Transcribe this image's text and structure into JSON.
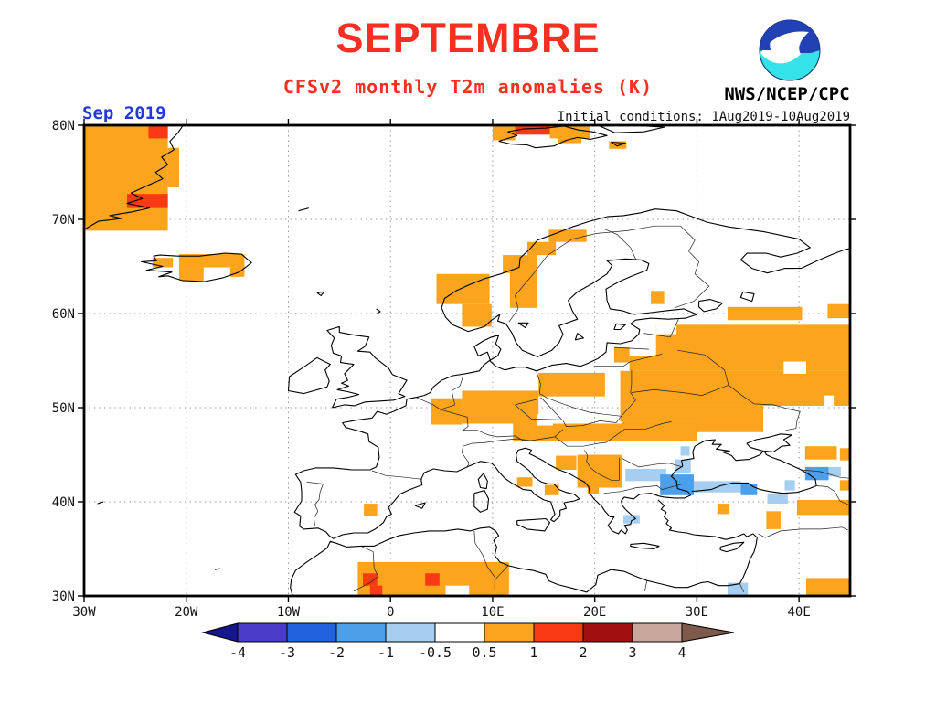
{
  "header": {
    "title": "SEPTEMBRE",
    "subtitle": "CFSv2 monthly T2m anomalies (K)",
    "agency": "NWS/NCEP/CPC",
    "noaa_label": "NOAA",
    "date_label": "Sep 2019",
    "init_conditions": "Initial conditions: 1Aug2019-10Aug2019"
  },
  "colors": {
    "title_red": "#f53022",
    "date_blue": "#2038dc",
    "map_frame": "#000000",
    "grid": "#999999"
  },
  "chart_data": {
    "type": "heatmap",
    "title": "SEPTEMBRE",
    "subtitle": "CFSv2 monthly T2m anomalies (K)",
    "projection": "equirectangular",
    "region": "Europe / North Atlantic",
    "lon_range": [
      -30,
      45
    ],
    "lat_range": [
      30,
      80
    ],
    "grid": true,
    "lat_ticks": [
      {
        "label": "80N",
        "value": 80
      },
      {
        "label": "70N",
        "value": 70
      },
      {
        "label": "60N",
        "value": 60
      },
      {
        "label": "50N",
        "value": 50
      },
      {
        "label": "40N",
        "value": 40
      },
      {
        "label": "30N",
        "value": 30
      }
    ],
    "lon_ticks": [
      {
        "label": "30W",
        "value": -30
      },
      {
        "label": "20W",
        "value": -20
      },
      {
        "label": "10W",
        "value": -10
      },
      {
        "label": "0",
        "value": 0
      },
      {
        "label": "10E",
        "value": 10
      },
      {
        "label": "20E",
        "value": 20
      },
      {
        "label": "30E",
        "value": 30
      },
      {
        "label": "40E",
        "value": 40
      }
    ],
    "colorbar": {
      "units": "K",
      "tick_labels": [
        "-4",
        "-3",
        "-2",
        "-1",
        "-0.5",
        "0.5",
        "1",
        "2",
        "3",
        "4"
      ],
      "segment_colors": [
        "#15158f",
        "#4a3bc8",
        "#2163dd",
        "#4d9fe9",
        "#a6cef1",
        "#ffffff",
        "#fba41c",
        "#f93814",
        "#a01010",
        "#c7a69b",
        "#7d5a49"
      ],
      "legend_position": "bottom"
    },
    "classes": {
      "p05": {
        "color": "#fba41c",
        "range_k": "0.5 to 1"
      },
      "p1": {
        "color": "#f93814",
        "range_k": "1 to 2"
      },
      "p2": {
        "color": "#a01010",
        "range_k": "2 to 3"
      },
      "m05": {
        "color": "#a6cef1",
        "range_k": "-1 to -0.5"
      },
      "m1": {
        "color": "#4d9fe9",
        "range_k": "-2 to -1"
      },
      "w": {
        "color": "#ffffff",
        "range_k": "-0.5 to 0.5"
      }
    },
    "anomaly_cells": [
      [
        -30,
        68.8,
        -21.8,
        80,
        "p05"
      ],
      [
        -21.8,
        73.4,
        -20.7,
        77.6,
        "p05"
      ],
      [
        -23.7,
        78.6,
        -21.8,
        80,
        "p1"
      ],
      [
        -25.8,
        71.2,
        -21.8,
        72.7,
        "p1"
      ],
      [
        -23.3,
        64.9,
        -21.3,
        65.9,
        "p05"
      ],
      [
        -20.7,
        64.9,
        -14.3,
        66.3,
        "p05"
      ],
      [
        -20.7,
        63.5,
        -18.3,
        64.9,
        "p05"
      ],
      [
        -15.7,
        63.9,
        -14.3,
        64.9,
        "p05"
      ],
      [
        10,
        78.4,
        12.2,
        80,
        "p05"
      ],
      [
        12.2,
        79,
        15.6,
        80,
        "p1"
      ],
      [
        15.6,
        78.6,
        19.5,
        80,
        "p05"
      ],
      [
        16.4,
        78.1,
        18.7,
        78.6,
        "p05"
      ],
      [
        21.4,
        77.5,
        23.1,
        78.3,
        "p05"
      ],
      [
        4.5,
        61,
        9.7,
        64.2,
        "p05"
      ],
      [
        7,
        58.6,
        9.9,
        61,
        "p05"
      ],
      [
        11.7,
        60.6,
        14.4,
        64.4,
        "p05"
      ],
      [
        11,
        64.3,
        14.3,
        66.2,
        "p05"
      ],
      [
        13.4,
        66.2,
        16.2,
        67.6,
        "p05"
      ],
      [
        15.5,
        67.6,
        19.2,
        68.9,
        "p05"
      ],
      [
        25.5,
        61,
        26.8,
        62.4,
        "p05"
      ],
      [
        33,
        59.3,
        40.3,
        60.7,
        "p05"
      ],
      [
        42.8,
        59.5,
        45,
        61,
        "p05"
      ],
      [
        26,
        55.5,
        45,
        58.8,
        "p05"
      ],
      [
        21.9,
        54.8,
        23.4,
        56.4,
        "p05"
      ],
      [
        23.4,
        53.9,
        45,
        55.5,
        "p05"
      ],
      [
        22.5,
        50.2,
        45,
        53.9,
        "p05"
      ],
      [
        14.5,
        51.2,
        21,
        53.7,
        "p05"
      ],
      [
        7,
        48.3,
        14.5,
        51.8,
        "p05"
      ],
      [
        4,
        48.2,
        7,
        51,
        "p05"
      ],
      [
        12,
        46.4,
        23,
        48.3,
        "p05"
      ],
      [
        22.7,
        46.5,
        30,
        48.5,
        "p05"
      ],
      [
        30,
        47.4,
        36.5,
        48.6,
        "p05"
      ],
      [
        22.5,
        48.5,
        36.5,
        50.2,
        "p05"
      ],
      [
        16.2,
        43.4,
        18.2,
        44.9,
        "p05"
      ],
      [
        18.3,
        41.5,
        22.7,
        45,
        "p05"
      ],
      [
        19.3,
        40.8,
        20.4,
        41.5,
        "p05"
      ],
      [
        12.4,
        41.6,
        13.9,
        42.6,
        "p05"
      ],
      [
        15.1,
        40.7,
        16.5,
        41.8,
        "p05"
      ],
      [
        -2.6,
        38.5,
        -1.3,
        39.8,
        "p05"
      ],
      [
        32,
        38.7,
        33.2,
        39.8,
        "p05"
      ],
      [
        36.8,
        37.1,
        38.2,
        39,
        "p05"
      ],
      [
        39.8,
        38.6,
        45,
        40.2,
        "p05"
      ],
      [
        44,
        41.2,
        45,
        42.3,
        "p05"
      ],
      [
        40.6,
        44.5,
        43.7,
        45.9,
        "p05"
      ],
      [
        44,
        44.4,
        45,
        45.7,
        "p05"
      ],
      [
        -3.2,
        30,
        11.6,
        33.6,
        "p05"
      ],
      [
        -2.7,
        31.1,
        -1.3,
        32.4,
        "p1"
      ],
      [
        -2,
        30,
        -0.8,
        31.1,
        "p1"
      ],
      [
        3.4,
        31.1,
        4.8,
        32.4,
        "p1"
      ],
      [
        40.7,
        30,
        45,
        31.9,
        "p05"
      ],
      [
        33,
        30,
        35,
        31.4,
        "m05"
      ],
      [
        23,
        42.2,
        27,
        43.5,
        "m05"
      ],
      [
        26.4,
        40.7,
        29.7,
        42.9,
        "m1"
      ],
      [
        27.9,
        43.1,
        29.4,
        44.5,
        "m05"
      ],
      [
        28.4,
        44.9,
        29.3,
        45.9,
        "m05"
      ],
      [
        29.7,
        41,
        34.3,
        42.2,
        "m05"
      ],
      [
        34.3,
        40.7,
        35.9,
        41.9,
        "m1"
      ],
      [
        38.6,
        41.2,
        39.6,
        42.3,
        "m05"
      ],
      [
        36.9,
        39.8,
        38.9,
        40.9,
        "m05"
      ],
      [
        40.6,
        42.3,
        42.9,
        43.7,
        "m1"
      ],
      [
        42.9,
        42.7,
        44.1,
        43.7,
        "m05"
      ],
      [
        22.8,
        37.7,
        24.4,
        38.6,
        "m05"
      ]
    ],
    "white_gaps": [
      [
        38.5,
        53.6,
        40.7,
        54.9
      ],
      [
        42.5,
        50.2,
        43.4,
        51.3
      ],
      [
        14.4,
        48.1,
        15.9,
        49.3
      ],
      [
        5.4,
        30,
        7.7,
        31.1
      ],
      [
        26,
        57.8,
        28,
        58.8
      ]
    ]
  }
}
